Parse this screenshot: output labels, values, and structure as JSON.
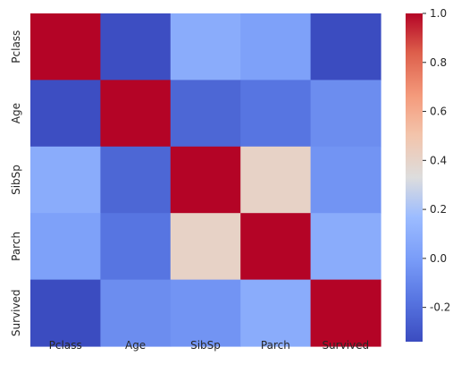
{
  "chart_data": {
    "type": "heatmap",
    "title": "",
    "xlabel": "",
    "ylabel": "",
    "x_categories": [
      "Pclass",
      "Age",
      "SibSp",
      "Parch",
      "Survived"
    ],
    "y_categories": [
      "Pclass",
      "Age",
      "SibSp",
      "Parch",
      "Survived"
    ],
    "values": [
      [
        1.0,
        -0.33,
        0.08,
        0.02,
        -0.34
      ],
      [
        -0.33,
        1.0,
        -0.23,
        -0.17,
        -0.07
      ],
      [
        0.08,
        -0.23,
        1.0,
        0.41,
        -0.04
      ],
      [
        0.02,
        -0.17,
        0.41,
        1.0,
        0.08
      ],
      [
        -0.34,
        -0.07,
        -0.04,
        0.08,
        1.0
      ]
    ],
    "colormap": "coolwarm",
    "vmin": -0.34,
    "vmax": 1.0,
    "colorbar": {
      "ticks": [
        -0.2,
        0.0,
        0.2,
        0.4,
        0.6,
        0.8,
        1.0
      ],
      "tick_labels": [
        "-0.2",
        "0.0",
        "0.2",
        "0.4",
        "0.6",
        "0.8",
        "1.0"
      ],
      "placement": "right"
    },
    "grid": false
  }
}
